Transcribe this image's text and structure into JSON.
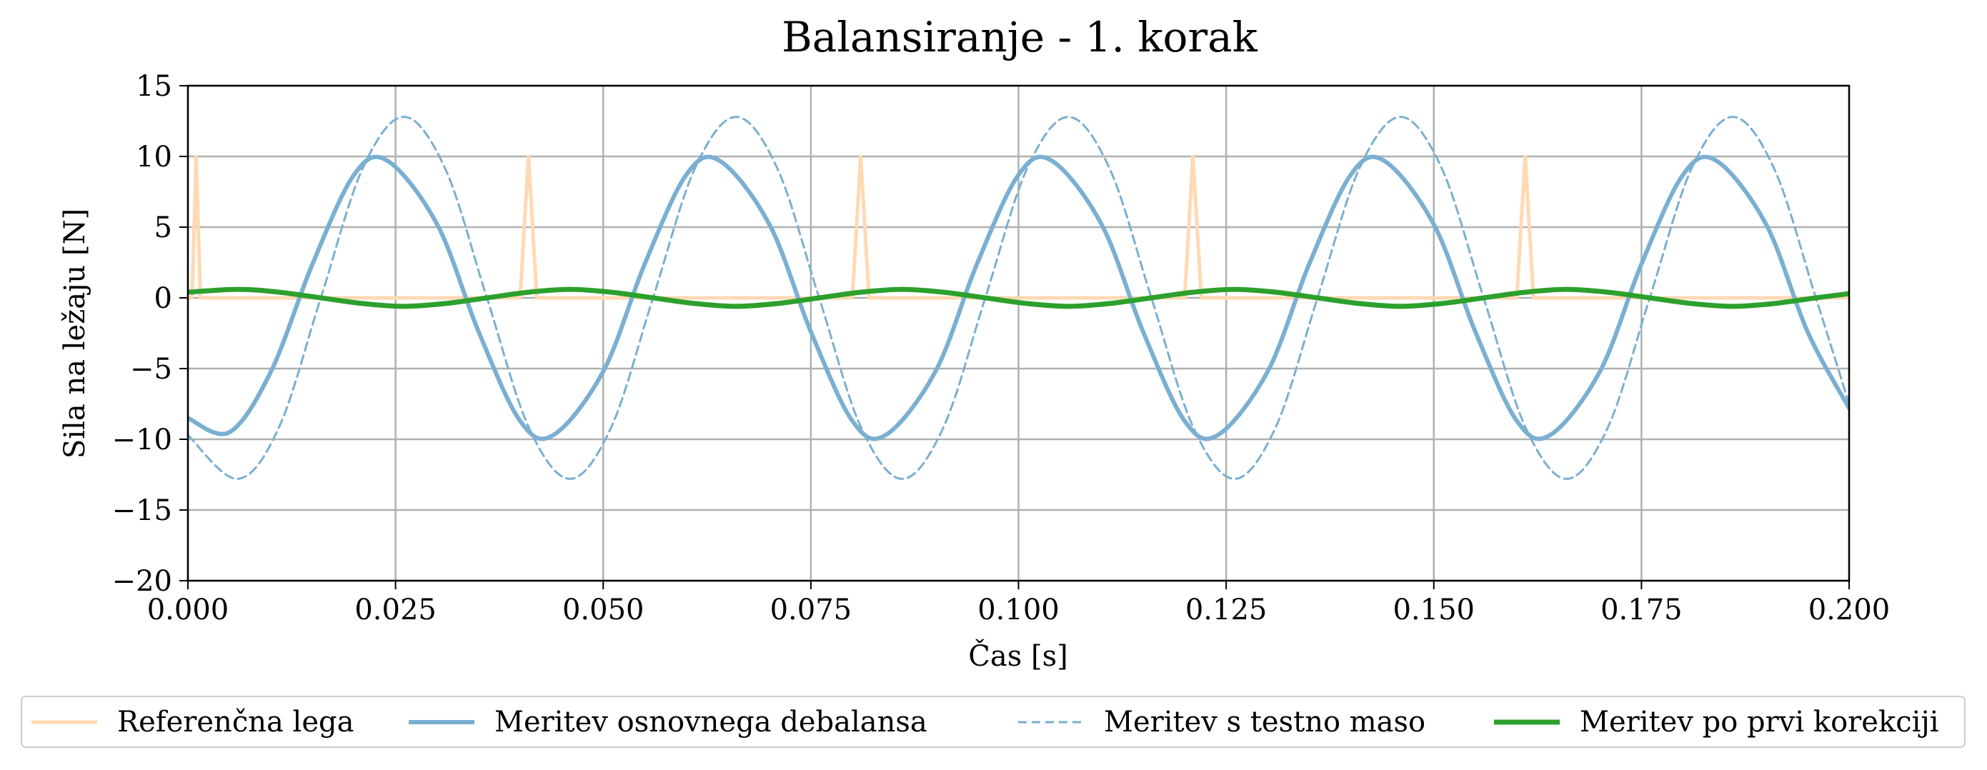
{
  "chart_data": {
    "type": "line",
    "title": "Balansiranje - 1. korak",
    "xlabel": "Čas [s]",
    "ylabel": "Sila na ležaju [N]",
    "xlim": [
      0.0,
      0.2
    ],
    "ylim": [
      -20,
      15
    ],
    "xticks": [
      0.0,
      0.025,
      0.05,
      0.075,
      0.1,
      0.125,
      0.15,
      0.175,
      0.2
    ],
    "xtick_labels": [
      "0.000",
      "0.025",
      "0.050",
      "0.075",
      "0.100",
      "0.125",
      "0.150",
      "0.175",
      "0.200"
    ],
    "yticks": [
      15,
      10,
      5,
      0,
      -5,
      -10,
      -15,
      -20
    ],
    "ytick_labels": [
      "15",
      "10",
      "5",
      "0",
      "−5",
      "−10",
      "−15",
      "−20"
    ],
    "grid": true,
    "legend_position": "bottom",
    "series": [
      {
        "name": "Referenčna lega",
        "color": "#ffd9b3",
        "style": "solid",
        "x": [
          0.0,
          0.0005,
          0.001,
          0.0015,
          0.002,
          0.0395,
          0.04,
          0.041,
          0.042,
          0.0425,
          0.0795,
          0.08,
          0.081,
          0.082,
          0.0825,
          0.1195,
          0.12,
          0.121,
          0.122,
          0.1225,
          0.1595,
          0.16,
          0.161,
          0.162,
          0.1625,
          0.2
        ],
        "y": [
          0,
          0,
          10,
          0,
          0,
          0,
          0,
          10,
          0,
          0,
          0,
          0,
          10,
          0,
          0,
          0,
          0,
          10,
          0,
          0,
          0,
          0,
          10,
          0,
          0,
          0
        ]
      },
      {
        "name": "Meritev osnovnega debalansa",
        "color": "#7aafd2",
        "style": "solid",
        "x": [
          0.0,
          0.005,
          0.01,
          0.015,
          0.02,
          0.024,
          0.03,
          0.035,
          0.04,
          0.044,
          0.05,
          0.055,
          0.06,
          0.064,
          0.07,
          0.075,
          0.08,
          0.084,
          0.09,
          0.095,
          0.1,
          0.104,
          0.11,
          0.115,
          0.12,
          0.124,
          0.13,
          0.135,
          0.14,
          0.144,
          0.15,
          0.155,
          0.16,
          0.164,
          0.17,
          0.175,
          0.18,
          0.184,
          0.19,
          0.195,
          0.2
        ],
        "y": [
          -8.5,
          -9.5,
          -5.2,
          2.4,
          8.7,
          9.7,
          5.2,
          -2.4,
          -8.7,
          -9.7,
          -5.2,
          2.4,
          8.7,
          9.7,
          5.2,
          -2.4,
          -8.7,
          -9.7,
          -5.2,
          2.4,
          8.7,
          9.7,
          5.2,
          -2.4,
          -8.7,
          -9.7,
          -5.2,
          2.4,
          8.7,
          9.7,
          5.2,
          -2.4,
          -8.7,
          -9.7,
          -5.2,
          2.4,
          8.7,
          9.7,
          5.2,
          -2.4,
          -7.8
        ]
      },
      {
        "name": "Meritev s testno maso",
        "color": "#7aafd2",
        "style": "dashed",
        "x": [
          0.0,
          0.006,
          0.011,
          0.016,
          0.021,
          0.026,
          0.031,
          0.036,
          0.041,
          0.046,
          0.051,
          0.056,
          0.061,
          0.066,
          0.071,
          0.076,
          0.081,
          0.086,
          0.091,
          0.096,
          0.101,
          0.106,
          0.111,
          0.116,
          0.121,
          0.126,
          0.131,
          0.136,
          0.141,
          0.146,
          0.151,
          0.156,
          0.161,
          0.166,
          0.171,
          0.176,
          0.181,
          0.186,
          0.191,
          0.196,
          0.2
        ],
        "y": [
          -9.7,
          -12.8,
          -9.1,
          0,
          9.1,
          12.8,
          9.1,
          0,
          -9.1,
          -12.8,
          -9.1,
          0,
          9.1,
          12.8,
          9.1,
          0,
          -9.1,
          -12.8,
          -9.1,
          0,
          9.1,
          12.8,
          9.1,
          0,
          -9.1,
          -12.8,
          -9.1,
          0,
          9.1,
          12.8,
          9.1,
          0,
          -9.1,
          -12.8,
          -9.1,
          0,
          9.1,
          12.8,
          9.1,
          0,
          -7.5
        ]
      },
      {
        "name": "Meritev po prvi korekciji",
        "color": "#2ca02c",
        "style": "solid",
        "x": [
          0.0,
          0.006,
          0.011,
          0.016,
          0.021,
          0.026,
          0.031,
          0.036,
          0.041,
          0.046,
          0.051,
          0.056,
          0.061,
          0.066,
          0.071,
          0.076,
          0.081,
          0.086,
          0.091,
          0.096,
          0.101,
          0.106,
          0.111,
          0.116,
          0.121,
          0.126,
          0.131,
          0.136,
          0.141,
          0.146,
          0.151,
          0.156,
          0.161,
          0.166,
          0.171,
          0.176,
          0.181,
          0.186,
          0.191,
          0.196,
          0.2
        ],
        "y": [
          0.4,
          0.6,
          0.4,
          0,
          -0.4,
          -0.6,
          -0.4,
          0,
          0.4,
          0.6,
          0.4,
          0,
          -0.4,
          -0.6,
          -0.4,
          0,
          0.4,
          0.6,
          0.4,
          0,
          -0.4,
          -0.6,
          -0.4,
          0,
          0.4,
          0.6,
          0.4,
          0,
          -0.4,
          -0.6,
          -0.4,
          0,
          0.4,
          0.6,
          0.4,
          0,
          -0.4,
          -0.6,
          -0.4,
          0,
          0.3
        ]
      }
    ]
  }
}
